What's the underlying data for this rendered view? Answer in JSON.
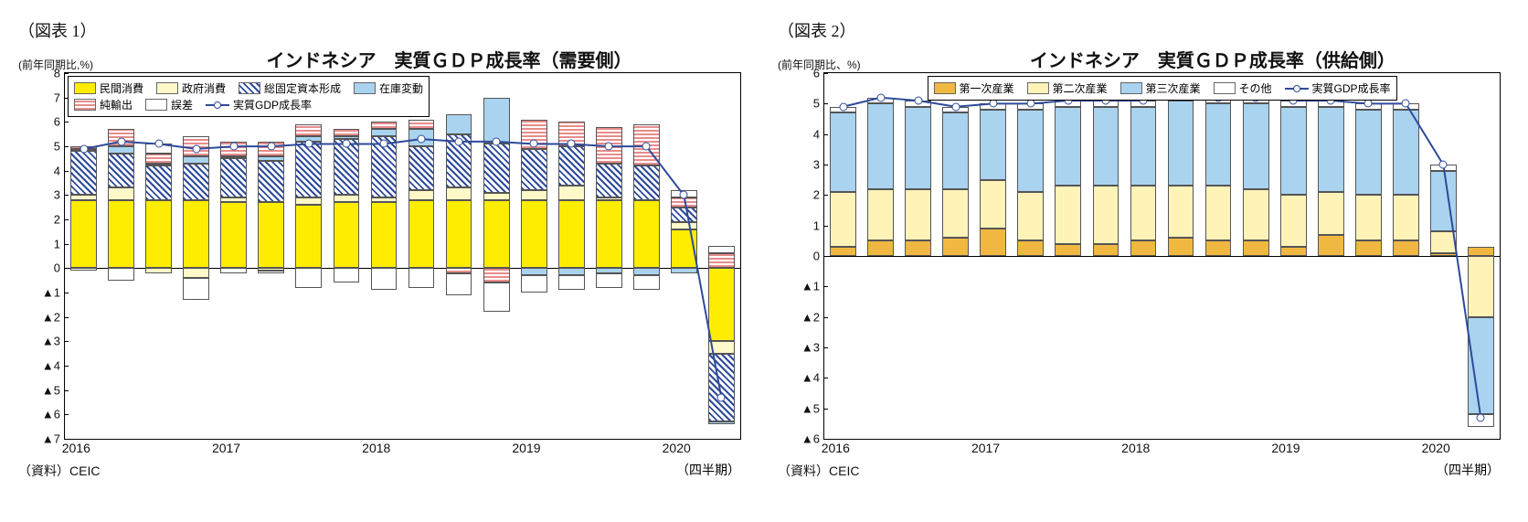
{
  "chart1": {
    "figure_label": "（図表 1）",
    "y_axis_label": "(前年同期比,%)",
    "title": "インドネシア　実質ＧＤＰ成長率（需要側）",
    "type": "stacked_bar_with_line",
    "ymin": -7,
    "ymax": 8,
    "ytick_step": 1,
    "neg_prefix": "▲",
    "x_years": [
      "2016",
      "2017",
      "2018",
      "2019",
      "2020"
    ],
    "x_quarter_label": "（四半期）",
    "source": "（資料）CEIC",
    "legend": {
      "rows": [
        [
          {
            "label": "民間消費",
            "pattern": "solid",
            "color": "#ffed00"
          },
          {
            "label": "政府消費",
            "pattern": "solid",
            "color": "#fff8c8"
          },
          {
            "label": "総固定資本形成",
            "pattern": "diag",
            "color": "#2e4a9a"
          },
          {
            "label": "在庫変動",
            "pattern": "solid",
            "color": "#a9d3ef"
          }
        ],
        [
          {
            "label": "純輸出",
            "pattern": "hstripe",
            "color": "#e88c8c"
          },
          {
            "label": "誤差",
            "pattern": "solid",
            "color": "#ffffff"
          },
          {
            "label": "実質GDP成長率",
            "pattern": "line",
            "color": "#2e4a9a"
          }
        ]
      ]
    },
    "colors": {
      "private": "#ffed00",
      "gov": "#fff8c8",
      "gfcf_fg": "#2e4a9a",
      "gfcf_bg": "#ffffff",
      "inventory": "#a9d3ef",
      "net_export": "#e88c8c",
      "error": "#ffffff",
      "line": "#2e4a9a",
      "border": "#555555"
    },
    "periods": 18,
    "gdp_line": [
      4.9,
      5.2,
      5.1,
      4.9,
      5.0,
      5.0,
      5.1,
      5.1,
      5.1,
      5.3,
      5.2,
      5.2,
      5.1,
      5.1,
      5.0,
      5.0,
      3.0,
      -5.3
    ],
    "bars": [
      {
        "pos": {
          "private": 2.8,
          "gov": 0.2,
          "gfcf": 1.8,
          "inventory": 0.1,
          "net_export": 0.1,
          "error": 0.0
        },
        "neg": {
          "private": 0,
          "gov": 0,
          "gfcf": 0,
          "inventory": 0,
          "net_export": 0,
          "error": -0.1
        }
      },
      {
        "pos": {
          "private": 2.8,
          "gov": 0.5,
          "gfcf": 1.4,
          "inventory": 0.3,
          "net_export": 0.7,
          "error": 0.0
        },
        "neg": {
          "private": 0,
          "gov": 0,
          "gfcf": 0,
          "inventory": 0,
          "net_export": 0,
          "error": -0.5
        }
      },
      {
        "pos": {
          "private": 2.8,
          "gov": 0.0,
          "gfcf": 1.4,
          "inventory": 0.1,
          "net_export": 0.4,
          "error": 0.4
        },
        "neg": {
          "private": 0,
          "gov": -0.2,
          "gfcf": 0,
          "inventory": 0,
          "net_export": 0,
          "error": 0
        }
      },
      {
        "pos": {
          "private": 2.8,
          "gov": 0.0,
          "gfcf": 1.5,
          "inventory": 0.3,
          "net_export": 0.8,
          "error": 0.0
        },
        "neg": {
          "private": 0,
          "gov": -0.4,
          "gfcf": 0,
          "inventory": 0,
          "net_export": 0,
          "error": -0.9
        }
      },
      {
        "pos": {
          "private": 2.7,
          "gov": 0.2,
          "gfcf": 1.6,
          "inventory": 0.1,
          "net_export": 0.6,
          "error": 0.0
        },
        "neg": {
          "private": 0,
          "gov": 0,
          "gfcf": 0,
          "inventory": 0,
          "net_export": 0,
          "error": -0.2
        }
      },
      {
        "pos": {
          "private": 2.7,
          "gov": 0.0,
          "gfcf": 1.7,
          "inventory": 0.2,
          "net_export": 0.6,
          "error": 0.0
        },
        "neg": {
          "private": 0,
          "gov": -0.1,
          "gfcf": 0,
          "inventory": 0,
          "net_export": 0,
          "error": -0.1
        }
      },
      {
        "pos": {
          "private": 2.6,
          "gov": 0.3,
          "gfcf": 2.3,
          "inventory": 0.2,
          "net_export": 0.5,
          "error": 0.0
        },
        "neg": {
          "private": 0,
          "gov": 0,
          "gfcf": 0,
          "inventory": 0,
          "net_export": 0,
          "error": -0.8
        }
      },
      {
        "pos": {
          "private": 2.7,
          "gov": 0.3,
          "gfcf": 2.3,
          "inventory": 0.1,
          "net_export": 0.3,
          "error": 0.0
        },
        "neg": {
          "private": 0,
          "gov": 0,
          "gfcf": 0,
          "inventory": 0,
          "net_export": 0,
          "error": -0.6
        }
      },
      {
        "pos": {
          "private": 2.7,
          "gov": 0.2,
          "gfcf": 2.5,
          "inventory": 0.3,
          "net_export": 0.3,
          "error": 0.0
        },
        "neg": {
          "private": 0,
          "gov": 0,
          "gfcf": 0,
          "inventory": 0,
          "net_export": 0,
          "error": -0.9
        }
      },
      {
        "pos": {
          "private": 2.8,
          "gov": 0.4,
          "gfcf": 1.8,
          "inventory": 0.7,
          "net_export": 0.4,
          "error": 0.0
        },
        "neg": {
          "private": 0,
          "gov": 0,
          "gfcf": 0,
          "inventory": 0,
          "net_export": 0,
          "error": -0.8
        }
      },
      {
        "pos": {
          "private": 2.8,
          "gov": 0.5,
          "gfcf": 2.2,
          "inventory": 0.8,
          "net_export": 0.0,
          "error": 0.0
        },
        "neg": {
          "private": 0,
          "gov": 0,
          "gfcf": 0,
          "inventory": 0,
          "net_export": -0.2,
          "error": -0.9
        }
      },
      {
        "pos": {
          "private": 2.8,
          "gov": 0.3,
          "gfcf": 2.0,
          "inventory": 1.9,
          "net_export": 0.0,
          "error": 0.0
        },
        "neg": {
          "private": 0,
          "gov": 0,
          "gfcf": 0,
          "inventory": 0,
          "net_export": -0.6,
          "error": -1.2
        }
      },
      {
        "pos": {
          "private": 2.8,
          "gov": 0.4,
          "gfcf": 1.7,
          "inventory": 0.0,
          "net_export": 1.2,
          "error": 0.0
        },
        "neg": {
          "private": 0,
          "gov": 0,
          "gfcf": 0,
          "inventory": -0.3,
          "net_export": 0,
          "error": -0.7
        }
      },
      {
        "pos": {
          "private": 2.8,
          "gov": 0.6,
          "gfcf": 1.6,
          "inventory": 0.0,
          "net_export": 1.0,
          "error": 0.0
        },
        "neg": {
          "private": 0,
          "gov": 0,
          "gfcf": 0,
          "inventory": -0.3,
          "net_export": 0,
          "error": -0.6
        }
      },
      {
        "pos": {
          "private": 2.8,
          "gov": 0.1,
          "gfcf": 1.4,
          "inventory": 0.0,
          "net_export": 1.5,
          "error": 0.0
        },
        "neg": {
          "private": 0,
          "gov": 0,
          "gfcf": 0,
          "inventory": -0.2,
          "net_export": 0,
          "error": -0.6
        }
      },
      {
        "pos": {
          "private": 2.8,
          "gov": 0.0,
          "gfcf": 1.4,
          "inventory": 0.0,
          "net_export": 1.7,
          "error": 0.0
        },
        "neg": {
          "private": 0,
          "gov": 0,
          "gfcf": 0,
          "inventory": -0.3,
          "net_export": 0,
          "error": -0.6
        }
      },
      {
        "pos": {
          "private": 1.6,
          "gov": 0.3,
          "gfcf": 0.6,
          "inventory": 0.0,
          "net_export": 0.4,
          "error": 0.3
        },
        "neg": {
          "private": 0,
          "gov": 0,
          "gfcf": 0,
          "inventory": -0.2,
          "net_export": 0,
          "error": 0
        }
      },
      {
        "pos": {
          "private": 0.0,
          "gov": 0.0,
          "gfcf": 0.0,
          "inventory": 0.0,
          "net_export": 0.6,
          "error": 0.3
        },
        "neg": {
          "private": -3.0,
          "gov": -0.5,
          "gfcf": -2.8,
          "inventory": -0.1,
          "net_export": 0,
          "error": 0
        }
      }
    ]
  },
  "chart2": {
    "figure_label": "（図表 2）",
    "y_axis_label": "(前年同期比、%)",
    "title": "インドネシア　実質ＧＤＰ成長率（供給側）",
    "type": "stacked_bar_with_line",
    "ymin": -6,
    "ymax": 6,
    "ytick_step": 1,
    "neg_prefix": "▲",
    "x_years": [
      "2016",
      "2017",
      "2018",
      "2019",
      "2020"
    ],
    "x_quarter_label": "（四半期）",
    "source": "（資料）CEIC",
    "legend": {
      "rows": [
        [
          {
            "label": "第一次産業",
            "pattern": "solid",
            "color": "#f0b840"
          },
          {
            "label": "第二次産業",
            "pattern": "solid",
            "color": "#fff3b8"
          },
          {
            "label": "第三次産業",
            "pattern": "solid",
            "color": "#a9d3ef"
          },
          {
            "label": "その他",
            "pattern": "solid",
            "color": "#ffffff"
          },
          {
            "label": "実質GDP成長率",
            "pattern": "line",
            "color": "#2e4a9a"
          }
        ]
      ]
    },
    "colors": {
      "primary_ind": "#f0b840",
      "secondary_ind": "#fff3b8",
      "tertiary_ind": "#a9d3ef",
      "other": "#ffffff",
      "line": "#2e4a9a",
      "border": "#555555"
    },
    "periods": 18,
    "gdp_line": [
      4.9,
      5.2,
      5.1,
      4.9,
      5.0,
      5.0,
      5.1,
      5.1,
      5.1,
      5.3,
      5.2,
      5.2,
      5.1,
      5.1,
      5.0,
      5.0,
      3.0,
      -5.3
    ],
    "bars": [
      {
        "pos": {
          "primary": 0.3,
          "secondary": 1.8,
          "tertiary": 2.6,
          "other": 0.2
        },
        "neg": {
          "primary": 0,
          "secondary": 0,
          "tertiary": 0,
          "other": 0
        }
      },
      {
        "pos": {
          "primary": 0.5,
          "secondary": 1.7,
          "tertiary": 2.8,
          "other": 0.2
        },
        "neg": {
          "primary": 0,
          "secondary": 0,
          "tertiary": 0,
          "other": 0
        }
      },
      {
        "pos": {
          "primary": 0.5,
          "secondary": 1.7,
          "tertiary": 2.7,
          "other": 0.2
        },
        "neg": {
          "primary": 0,
          "secondary": 0,
          "tertiary": 0,
          "other": 0
        }
      },
      {
        "pos": {
          "primary": 0.6,
          "secondary": 1.6,
          "tertiary": 2.5,
          "other": 0.2
        },
        "neg": {
          "primary": 0,
          "secondary": 0,
          "tertiary": 0,
          "other": 0
        }
      },
      {
        "pos": {
          "primary": 0.9,
          "secondary": 1.6,
          "tertiary": 2.3,
          "other": 0.2
        },
        "neg": {
          "primary": 0,
          "secondary": 0,
          "tertiary": 0,
          "other": 0
        }
      },
      {
        "pos": {
          "primary": 0.5,
          "secondary": 1.6,
          "tertiary": 2.7,
          "other": 0.2
        },
        "neg": {
          "primary": 0,
          "secondary": 0,
          "tertiary": 0,
          "other": 0
        }
      },
      {
        "pos": {
          "primary": 0.4,
          "secondary": 1.9,
          "tertiary": 2.6,
          "other": 0.2
        },
        "neg": {
          "primary": 0,
          "secondary": 0,
          "tertiary": 0,
          "other": 0
        }
      },
      {
        "pos": {
          "primary": 0.4,
          "secondary": 1.9,
          "tertiary": 2.6,
          "other": 0.2
        },
        "neg": {
          "primary": 0,
          "secondary": 0,
          "tertiary": 0,
          "other": 0
        }
      },
      {
        "pos": {
          "primary": 0.5,
          "secondary": 1.8,
          "tertiary": 2.6,
          "other": 0.2
        },
        "neg": {
          "primary": 0,
          "secondary": 0,
          "tertiary": 0,
          "other": 0
        }
      },
      {
        "pos": {
          "primary": 0.6,
          "secondary": 1.7,
          "tertiary": 2.8,
          "other": 0.2
        },
        "neg": {
          "primary": 0,
          "secondary": 0,
          "tertiary": 0,
          "other": 0
        }
      },
      {
        "pos": {
          "primary": 0.5,
          "secondary": 1.8,
          "tertiary": 2.7,
          "other": 0.2
        },
        "neg": {
          "primary": 0,
          "secondary": 0,
          "tertiary": 0,
          "other": 0
        }
      },
      {
        "pos": {
          "primary": 0.5,
          "secondary": 1.7,
          "tertiary": 2.8,
          "other": 0.2
        },
        "neg": {
          "primary": 0,
          "secondary": 0,
          "tertiary": 0,
          "other": 0
        }
      },
      {
        "pos": {
          "primary": 0.3,
          "secondary": 1.7,
          "tertiary": 2.9,
          "other": 0.2
        },
        "neg": {
          "primary": 0,
          "secondary": 0,
          "tertiary": 0,
          "other": 0
        }
      },
      {
        "pos": {
          "primary": 0.7,
          "secondary": 1.4,
          "tertiary": 2.8,
          "other": 0.2
        },
        "neg": {
          "primary": 0,
          "secondary": 0,
          "tertiary": 0,
          "other": 0
        }
      },
      {
        "pos": {
          "primary": 0.5,
          "secondary": 1.5,
          "tertiary": 2.8,
          "other": 0.2
        },
        "neg": {
          "primary": 0,
          "secondary": 0,
          "tertiary": 0,
          "other": 0
        }
      },
      {
        "pos": {
          "primary": 0.5,
          "secondary": 1.5,
          "tertiary": 2.8,
          "other": 0.2
        },
        "neg": {
          "primary": 0,
          "secondary": 0,
          "tertiary": 0,
          "other": 0
        }
      },
      {
        "pos": {
          "primary": 0.1,
          "secondary": 0.7,
          "tertiary": 2.0,
          "other": 0.2
        },
        "neg": {
          "primary": 0,
          "secondary": 0,
          "tertiary": 0,
          "other": 0
        }
      },
      {
        "pos": {
          "primary": 0.3,
          "secondary": 0.0,
          "tertiary": 0.0,
          "other": 0.0
        },
        "neg": {
          "primary": 0,
          "secondary": -2.0,
          "tertiary": -3.2,
          "other": -0.4
        }
      }
    ]
  }
}
